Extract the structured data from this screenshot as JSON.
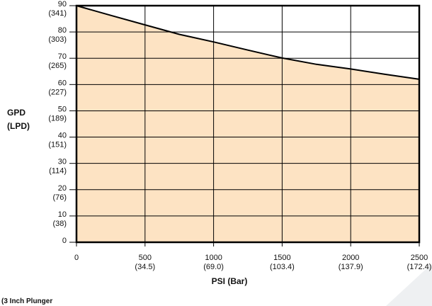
{
  "chart_data": {
    "type": "area",
    "x": [
      0,
      250,
      500,
      750,
      1000,
      1250,
      1500,
      1750,
      2000,
      2250,
      2500
    ],
    "series": [
      {
        "values": [
          90,
          86.3,
          82.7,
          79.1,
          76.2,
          73.1,
          70.1,
          67.7,
          65.9,
          63.9,
          62
        ]
      }
    ],
    "xlim": [
      0,
      2500
    ],
    "ylim": [
      0,
      90
    ],
    "x_ticks": [
      {
        "value": 0,
        "label": "0",
        "sublabel": ""
      },
      {
        "value": 500,
        "label": "500",
        "sublabel": "(34.5)"
      },
      {
        "value": 1000,
        "label": "1000",
        "sublabel": "(69.0)"
      },
      {
        "value": 1500,
        "label": "1500",
        "sublabel": "(103.4)"
      },
      {
        "value": 2000,
        "label": "2000",
        "sublabel": "(137.9)"
      },
      {
        "value": 2500,
        "label": "2500",
        "sublabel": "(172.4)"
      }
    ],
    "y_ticks": [
      {
        "value": 0,
        "label": "0",
        "sublabel": ""
      },
      {
        "value": 10,
        "label": "10",
        "sublabel": "(38)"
      },
      {
        "value": 20,
        "label": "20",
        "sublabel": "(76)"
      },
      {
        "value": 30,
        "label": "30",
        "sublabel": "(114)"
      },
      {
        "value": 40,
        "label": "40",
        "sublabel": "(151)"
      },
      {
        "value": 50,
        "label": "50",
        "sublabel": "(189)"
      },
      {
        "value": 60,
        "label": "60",
        "sublabel": "(227)"
      },
      {
        "value": 70,
        "label": "70",
        "sublabel": "(265)"
      },
      {
        "value": 80,
        "label": "80",
        "sublabel": "(303)"
      },
      {
        "value": 90,
        "label": "90",
        "sublabel": "(341)"
      }
    ],
    "xlabel": "PSI (Bar)",
    "ylabel_line1": "GPD",
    "ylabel_line2": "(LPD)",
    "footnote": "(3 Inch Plunger",
    "grid": true,
    "colors": {
      "fill": "#fde3c3",
      "line": "#000000",
      "grid": "#000000"
    }
  }
}
